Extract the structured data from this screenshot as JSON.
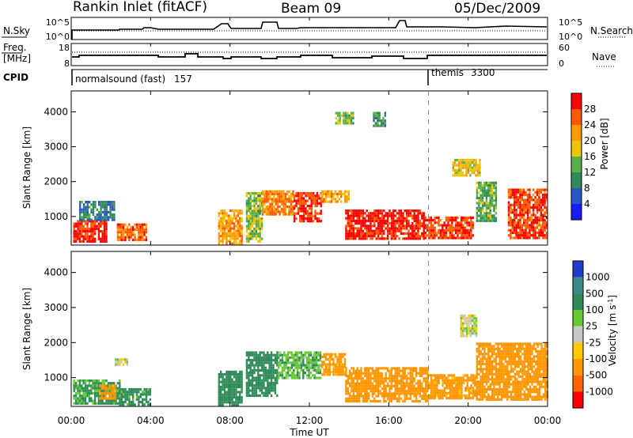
{
  "header": {
    "station": "Rankin Inlet (fitACF)",
    "beam": "Beam 09",
    "date": "05/Dec/2009"
  },
  "noise_panel": {
    "left_label": "N.Sky",
    "right_label": "N.Search",
    "ticks_left": [
      "10^5",
      "10^0"
    ],
    "ticks_right": [
      "10^5",
      "10^0"
    ]
  },
  "freq_panel": {
    "left_label_1": "Freq.",
    "left_label_2": "[MHz]",
    "right_label": "Nave",
    "ticks_left": [
      "18",
      "8"
    ],
    "ticks_right": [
      "60",
      "0"
    ]
  },
  "cpid_panel": {
    "label": "CPID",
    "programs": [
      {
        "name": "normalsound (fast)",
        "id": "157",
        "start_hour": 0
      },
      {
        "name": "themis",
        "id": "3300",
        "start_hour": 18
      }
    ]
  },
  "x_axis": {
    "label": "Time UT",
    "ticks": [
      "00:00",
      "04:00",
      "08:00",
      "12:00",
      "16:00",
      "20:00",
      "00:00"
    ],
    "range_hours": [
      0,
      24
    ]
  },
  "chart_data": [
    {
      "type": "heatmap",
      "name": "power",
      "ylabel": "Slant Range [km]",
      "yticks": [
        1000,
        2000,
        3000,
        4000
      ],
      "ylim": [
        180,
        4600
      ],
      "xlim": [
        0,
        24
      ],
      "colorbar": {
        "label": "Power [dB]",
        "ticks": [
          "4",
          "8",
          "12",
          "16",
          "20",
          "24",
          "28"
        ],
        "range": [
          0,
          30
        ],
        "colors": [
          "#1a1aff",
          "#2a55c8",
          "#2e8b57",
          "#58b04a",
          "#f0c400",
          "#ff9a00",
          "#ff5a00",
          "#ff0000"
        ]
      },
      "patches": [
        {
          "t": [
            0.1,
            1.8
          ],
          "r": [
            250,
            900
          ],
          "v": 27
        },
        {
          "t": [
            0.4,
            2.2
          ],
          "r": [
            900,
            1450
          ],
          "v": 8
        },
        {
          "t": [
            2.3,
            3.8
          ],
          "r": [
            300,
            800
          ],
          "v": 24
        },
        {
          "t": [
            7.4,
            8.6
          ],
          "r": [
            250,
            1200
          ],
          "v": 20
        },
        {
          "t": [
            8.8,
            9.6
          ],
          "r": [
            300,
            1700
          ],
          "v": 14
        },
        {
          "t": [
            9.6,
            11.2
          ],
          "r": [
            1050,
            1750
          ],
          "v": 22
        },
        {
          "t": [
            11.2,
            12.6
          ],
          "r": [
            900,
            1700
          ],
          "v": 26
        },
        {
          "t": [
            12.6,
            14.0
          ],
          "r": [
            1400,
            1750
          ],
          "v": 20
        },
        {
          "t": [
            13.8,
            17.8
          ],
          "r": [
            350,
            1200
          ],
          "v": 28
        },
        {
          "t": [
            17.8,
            20.2
          ],
          "r": [
            400,
            1000
          ],
          "v": 26
        },
        {
          "t": [
            19.2,
            20.6
          ],
          "r": [
            2150,
            2650
          ],
          "v": 18
        },
        {
          "t": [
            20.4,
            21.4
          ],
          "r": [
            900,
            2000
          ],
          "v": 12
        },
        {
          "t": [
            22.0,
            24.0
          ],
          "r": [
            400,
            1800
          ],
          "v": 26
        },
        {
          "t": [
            13.3,
            14.2
          ],
          "r": [
            3700,
            4000
          ],
          "v": 14
        },
        {
          "t": [
            15.2,
            15.8
          ],
          "r": [
            3600,
            4000
          ],
          "v": 10
        }
      ]
    },
    {
      "type": "heatmap",
      "name": "velocity",
      "ylabel": "Slant Range [km]",
      "yticks": [
        1000,
        2000,
        3000,
        4000
      ],
      "ylim": [
        180,
        4600
      ],
      "xlim": [
        0,
        24
      ],
      "colorbar": {
        "label": "Velocity [m s^-1]",
        "ticks": [
          "1000",
          "500",
          "100",
          "25",
          "-25",
          "-100",
          "-500",
          "-1000"
        ],
        "colors": [
          "#1f3cc8",
          "#3a8a8a",
          "#2e8b57",
          "#66c833",
          "#c8c8c8",
          "#ffc800",
          "#ff9600",
          "#ff6400",
          "#ff0000"
        ]
      },
      "patches": [
        {
          "t": [
            0.1,
            2.4
          ],
          "r": [
            250,
            950
          ],
          "v": 120
        },
        {
          "t": [
            2.4,
            4.0
          ],
          "r": [
            250,
            700
          ],
          "v": 150
        },
        {
          "t": [
            1.4,
            2.2
          ],
          "r": [
            400,
            800
          ],
          "v": -150
        },
        {
          "t": [
            7.4,
            8.6
          ],
          "r": [
            250,
            1200
          ],
          "v": 300
        },
        {
          "t": [
            8.8,
            10.4
          ],
          "r": [
            500,
            1750
          ],
          "v": 200
        },
        {
          "t": [
            10.4,
            12.6
          ],
          "r": [
            1000,
            1750
          ],
          "v": 80
        },
        {
          "t": [
            12.6,
            13.8
          ],
          "r": [
            1100,
            1700
          ],
          "v": -150
        },
        {
          "t": [
            13.8,
            18.0
          ],
          "r": [
            300,
            1300
          ],
          "v": -200
        },
        {
          "t": [
            18.0,
            20.4
          ],
          "r": [
            400,
            1100
          ],
          "v": -150
        },
        {
          "t": [
            19.6,
            20.4
          ],
          "r": [
            2200,
            2800
          ],
          "v": 0
        },
        {
          "t": [
            20.4,
            24.0
          ],
          "r": [
            400,
            2000
          ],
          "v": -200
        },
        {
          "t": [
            2.2,
            2.8
          ],
          "r": [
            1350,
            1550
          ],
          "v": 0
        }
      ]
    }
  ]
}
